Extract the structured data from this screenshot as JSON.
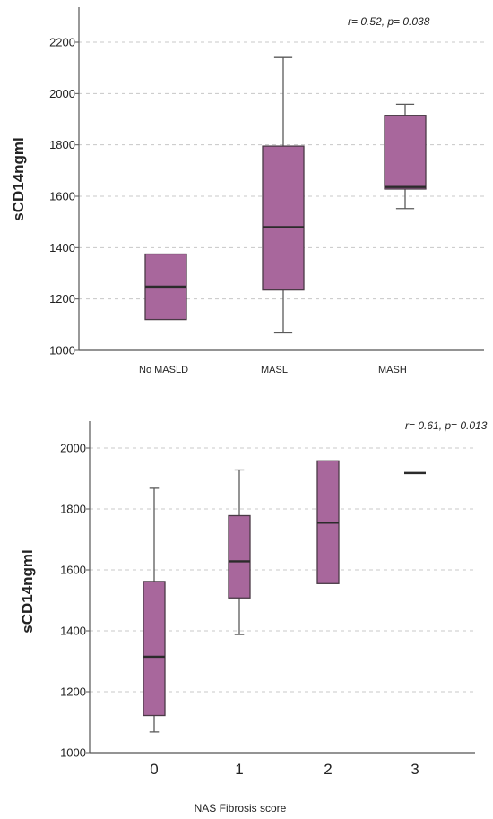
{
  "chart_data": [
    {
      "type": "box",
      "title": "",
      "ylabel": "sCD14ngml",
      "xlabel": "",
      "annotation": "r= 0.52, p= 0.038",
      "ylim": [
        1000,
        2300
      ],
      "yticks": [
        1000,
        1200,
        1400,
        1600,
        1800,
        2000,
        2200
      ],
      "grid": true,
      "categories": [
        "No MASLD",
        "MASL",
        "MASH"
      ],
      "boxes": [
        {
          "category": "No MASLD",
          "min": 1120,
          "q1": 1120,
          "median": 1248,
          "q3": 1375,
          "max": 1375
        },
        {
          "category": "MASL",
          "min": 1068,
          "q1": 1235,
          "median": 1480,
          "q3": 1795,
          "max": 2140
        },
        {
          "category": "MASH",
          "min": 1552,
          "q1": 1628,
          "median": 1636,
          "q3": 1915,
          "max": 1958
        }
      ]
    },
    {
      "type": "box",
      "title": "",
      "ylabel": "sCD14ngml",
      "xlabel": "NAS Fibrosis score",
      "annotation": "r= 0.61, p= 0.013",
      "ylim": [
        1000,
        2090
      ],
      "yticks": [
        1000,
        1200,
        1400,
        1600,
        1800,
        2000
      ],
      "grid": true,
      "categories": [
        "0",
        "1",
        "2",
        "3"
      ],
      "boxes": [
        {
          "category": "0",
          "min": 1068,
          "q1": 1122,
          "median": 1315,
          "q3": 1562,
          "max": 1868
        },
        {
          "category": "1",
          "min": 1388,
          "q1": 1508,
          "median": 1628,
          "q3": 1778,
          "max": 1928
        },
        {
          "category": "2",
          "min": 1555,
          "q1": 1555,
          "median": 1755,
          "q3": 1958,
          "max": 1958
        },
        {
          "category": "3",
          "min": 1918,
          "q1": 1918,
          "median": 1918,
          "q3": 1918,
          "max": 1918
        }
      ]
    }
  ],
  "colors": {
    "box_fill": "#a8679c",
    "box_stroke": "#4a3a46",
    "median_line": "#2b2b2b",
    "whisker": "#5a5a5a",
    "grid": "#c8c8c8",
    "axis": "#555555",
    "text": "#222222"
  }
}
